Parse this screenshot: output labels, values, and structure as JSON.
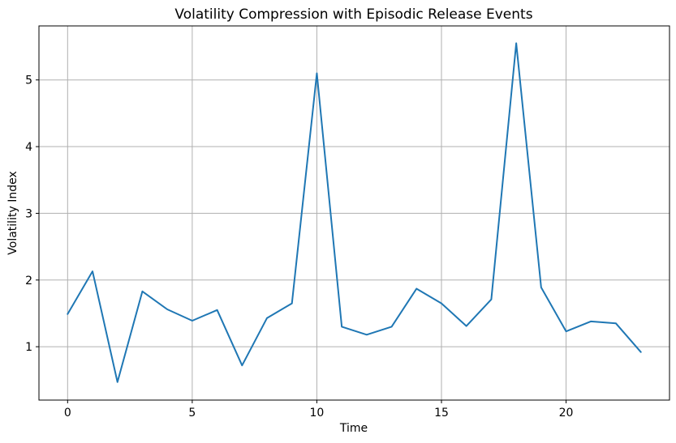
{
  "chart_data": {
    "type": "line",
    "title": "Volatility Compression with Episodic Release Events",
    "xlabel": "Time",
    "ylabel": "Volatility Index",
    "x": [
      0,
      1,
      2,
      3,
      4,
      5,
      6,
      7,
      8,
      9,
      10,
      11,
      12,
      13,
      14,
      15,
      16,
      17,
      18,
      19,
      20,
      21,
      22,
      23
    ],
    "series": [
      {
        "name": "Volatility Index",
        "values": [
          1.49,
          2.13,
          0.47,
          1.83,
          1.56,
          1.39,
          1.55,
          0.72,
          1.43,
          1.65,
          5.1,
          1.3,
          1.18,
          1.3,
          1.87,
          1.65,
          1.31,
          1.71,
          5.55,
          1.89,
          1.23,
          1.38,
          1.35,
          0.92
        ]
      }
    ],
    "xlim": [
      -1.15,
      24.15
    ],
    "ylim": [
      0.2,
      5.81
    ],
    "xticks": [
      0,
      5,
      10,
      15,
      20
    ],
    "yticks": [
      1,
      2,
      3,
      4,
      5
    ],
    "grid": true,
    "legend_position": "none",
    "line_color": "#1f77b4",
    "grid_color": "#b0b0b0",
    "spine_color": "#000000",
    "text_color": "#000000",
    "background_color": "#ffffff"
  }
}
